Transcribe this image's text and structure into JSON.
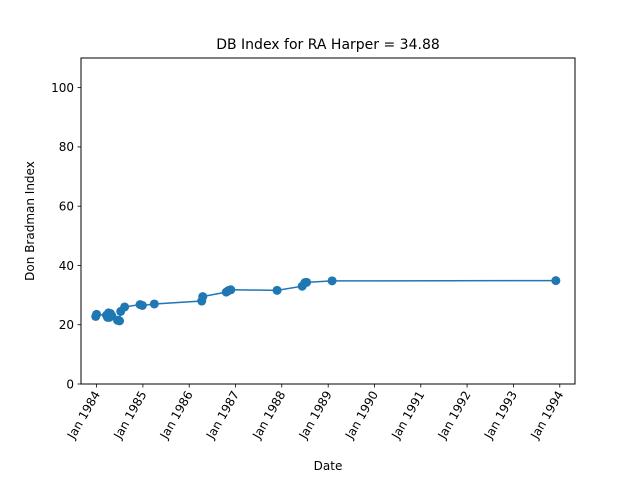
{
  "chart_data": {
    "type": "line",
    "title": "DB Index for RA Harper = 34.88",
    "xlabel": "Date",
    "ylabel": "Don Bradman Index",
    "ylim": [
      0,
      110
    ],
    "xlim": [
      "1983-09-01",
      "1994-05-01"
    ],
    "grid": false,
    "legend": "none",
    "color": "#1f77b4",
    "yticks": [
      0,
      20,
      40,
      60,
      80,
      100
    ],
    "xticks": [
      {
        "date": "1984-01-01",
        "label": "Jan 1984"
      },
      {
        "date": "1985-01-01",
        "label": "Jan 1985"
      },
      {
        "date": "1986-01-01",
        "label": "Jan 1986"
      },
      {
        "date": "1987-01-01",
        "label": "Jan 1987"
      },
      {
        "date": "1988-01-01",
        "label": "Jan 1988"
      },
      {
        "date": "1989-01-01",
        "label": "Jan 1989"
      },
      {
        "date": "1990-01-01",
        "label": "Jan 1990"
      },
      {
        "date": "1991-01-01",
        "label": "Jan 1991"
      },
      {
        "date": "1992-01-01",
        "label": "Jan 1992"
      },
      {
        "date": "1993-01-01",
        "label": "Jan 1993"
      },
      {
        "date": "1994-01-01",
        "label": "Jan 1994"
      }
    ],
    "series": [
      {
        "points": [
          {
            "x": "1983-12-26",
            "y": 22.8
          },
          {
            "x": "1984-01-02",
            "y": 23.5
          },
          {
            "x": "1984-03-20",
            "y": 23.2
          },
          {
            "x": "1984-03-28",
            "y": 22.5
          },
          {
            "x": "1984-04-05",
            "y": 24.0
          },
          {
            "x": "1984-04-12",
            "y": 22.5
          },
          {
            "x": "1984-04-20",
            "y": 23.8
          },
          {
            "x": "1984-05-01",
            "y": 23.0
          },
          {
            "x": "1984-06-15",
            "y": 21.5
          },
          {
            "x": "1984-07-01",
            "y": 21.3
          },
          {
            "x": "1984-07-10",
            "y": 24.5
          },
          {
            "x": "1984-08-10",
            "y": 26.0
          },
          {
            "x": "1984-12-10",
            "y": 26.8
          },
          {
            "x": "1984-12-28",
            "y": 26.5
          },
          {
            "x": "1985-04-01",
            "y": 27.0
          },
          {
            "x": "1986-04-10",
            "y": 28.0
          },
          {
            "x": "1986-04-18",
            "y": 29.5
          },
          {
            "x": "1986-10-20",
            "y": 31.0
          },
          {
            "x": "1986-11-05",
            "y": 31.5
          },
          {
            "x": "1986-11-25",
            "y": 31.8
          },
          {
            "x": "1987-11-25",
            "y": 31.6
          },
          {
            "x": "1988-06-10",
            "y": 33.0
          },
          {
            "x": "1988-07-01",
            "y": 34.2
          },
          {
            "x": "1988-07-15",
            "y": 34.3
          },
          {
            "x": "1989-02-01",
            "y": 34.8
          },
          {
            "x": "1993-12-01",
            "y": 34.88
          }
        ]
      }
    ]
  }
}
